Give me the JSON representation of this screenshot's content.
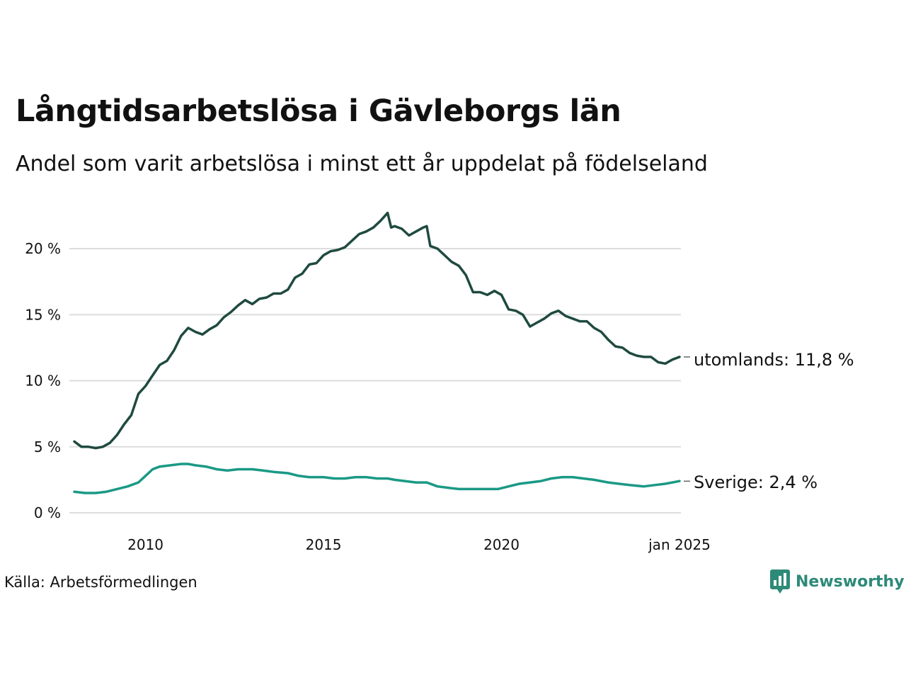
{
  "header": {
    "title": "Långtidsarbetslösa i Gävleborgs län",
    "subtitle": "Andel som varit arbetslösa i minst ett år uppdelat på födelseland"
  },
  "footer": {
    "source": "Källa: Arbetsförmedlingen",
    "brand": "Newsworthy"
  },
  "colors": {
    "series_utomlands": "#1f4a40",
    "series_sverige": "#1a9985",
    "grid": "#dddddd",
    "brand": "#2d8a78"
  },
  "chart_data": {
    "type": "line",
    "title": "Långtidsarbetslösa i Gävleborgs län",
    "subtitle": "Andel som varit arbetslösa i minst ett år uppdelat på födelseland",
    "xlabel": "",
    "ylabel": "",
    "x_range": [
      2008.0,
      2025.0
    ],
    "x_ticks": [
      {
        "value": 2010,
        "label": "2010"
      },
      {
        "value": 2015,
        "label": "2015"
      },
      {
        "value": 2020,
        "label": "2020"
      },
      {
        "value": 2025,
        "label": "jan 2025"
      }
    ],
    "ylim": [
      0,
      22
    ],
    "y_ticks": [
      {
        "value": 0,
        "label": "0 %"
      },
      {
        "value": 5,
        "label": "5 %"
      },
      {
        "value": 10,
        "label": "10 %"
      },
      {
        "value": 15,
        "label": "15 %"
      },
      {
        "value": 20,
        "label": "20 %"
      }
    ],
    "grid": true,
    "legend": "none",
    "series": [
      {
        "name": "utomlands",
        "end_label": "utomlands: 11,8 %",
        "color": "#1f4a40",
        "x": [
          2008.0,
          2008.2,
          2008.4,
          2008.6,
          2008.8,
          2009.0,
          2009.2,
          2009.4,
          2009.6,
          2009.8,
          2010.0,
          2010.2,
          2010.4,
          2010.6,
          2010.8,
          2011.0,
          2011.2,
          2011.4,
          2011.6,
          2011.8,
          2012.0,
          2012.2,
          2012.4,
          2012.6,
          2012.8,
          2013.0,
          2013.2,
          2013.4,
          2013.6,
          2013.8,
          2014.0,
          2014.2,
          2014.4,
          2014.6,
          2014.8,
          2015.0,
          2015.2,
          2015.4,
          2015.6,
          2015.8,
          2016.0,
          2016.2,
          2016.4,
          2016.6,
          2016.8,
          2016.9,
          2017.0,
          2017.2,
          2017.4,
          2017.6,
          2017.8,
          2017.9,
          2018.0,
          2018.2,
          2018.4,
          2018.6,
          2018.8,
          2019.0,
          2019.2,
          2019.4,
          2019.6,
          2019.8,
          2020.0,
          2020.2,
          2020.4,
          2020.6,
          2020.8,
          2021.0,
          2021.2,
          2021.4,
          2021.6,
          2021.8,
          2022.0,
          2022.2,
          2022.4,
          2022.6,
          2022.8,
          2023.0,
          2023.2,
          2023.4,
          2023.6,
          2023.8,
          2024.0,
          2024.2,
          2024.4,
          2024.6,
          2024.8,
          2025.0
        ],
        "values": [
          5.4,
          5.0,
          5.0,
          4.9,
          5.0,
          5.3,
          5.9,
          6.7,
          7.4,
          9.0,
          9.6,
          10.4,
          11.2,
          11.5,
          12.3,
          13.4,
          14.0,
          13.7,
          13.5,
          13.9,
          14.2,
          14.8,
          15.2,
          15.7,
          16.1,
          15.8,
          16.2,
          16.3,
          16.6,
          16.6,
          16.9,
          17.8,
          18.1,
          18.8,
          18.9,
          19.5,
          19.8,
          19.9,
          20.1,
          20.6,
          21.1,
          21.3,
          21.6,
          22.1,
          22.7,
          21.6,
          21.7,
          21.5,
          21.0,
          21.3,
          21.6,
          21.7,
          20.2,
          20.0,
          19.5,
          19.0,
          18.7,
          18.0,
          16.7,
          16.7,
          16.5,
          16.8,
          16.5,
          15.4,
          15.3,
          15.0,
          14.1,
          14.4,
          14.7,
          15.1,
          15.3,
          14.9,
          14.7,
          14.5,
          14.5,
          14.0,
          13.7,
          13.1,
          12.6,
          12.5,
          12.1,
          11.9,
          11.8,
          11.8,
          11.4,
          11.3,
          11.6,
          11.8
        ]
      },
      {
        "name": "Sverige",
        "end_label": "Sverige:  2,4 %",
        "color": "#1a9985",
        "x": [
          2008.0,
          2008.3,
          2008.6,
          2008.9,
          2009.2,
          2009.5,
          2009.8,
          2010.0,
          2010.2,
          2010.4,
          2010.7,
          2011.0,
          2011.2,
          2011.4,
          2011.7,
          2012.0,
          2012.3,
          2012.6,
          2013.0,
          2013.3,
          2013.6,
          2014.0,
          2014.3,
          2014.6,
          2015.0,
          2015.3,
          2015.6,
          2015.9,
          2016.2,
          2016.5,
          2016.8,
          2017.0,
          2017.3,
          2017.6,
          2017.9,
          2018.2,
          2018.5,
          2018.8,
          2019.0,
          2019.3,
          2019.6,
          2019.9,
          2020.2,
          2020.5,
          2020.8,
          2021.1,
          2021.4,
          2021.7,
          2022.0,
          2022.3,
          2022.6,
          2023.0,
          2023.3,
          2023.6,
          2024.0,
          2024.3,
          2024.6,
          2025.0
        ],
        "values": [
          1.6,
          1.5,
          1.5,
          1.6,
          1.8,
          2.0,
          2.3,
          2.8,
          3.3,
          3.5,
          3.6,
          3.7,
          3.7,
          3.6,
          3.5,
          3.3,
          3.2,
          3.3,
          3.3,
          3.2,
          3.1,
          3.0,
          2.8,
          2.7,
          2.7,
          2.6,
          2.6,
          2.7,
          2.7,
          2.6,
          2.6,
          2.5,
          2.4,
          2.3,
          2.3,
          2.0,
          1.9,
          1.8,
          1.8,
          1.8,
          1.8,
          1.8,
          2.0,
          2.2,
          2.3,
          2.4,
          2.6,
          2.7,
          2.7,
          2.6,
          2.5,
          2.3,
          2.2,
          2.1,
          2.0,
          2.1,
          2.2,
          2.4
        ]
      }
    ]
  }
}
